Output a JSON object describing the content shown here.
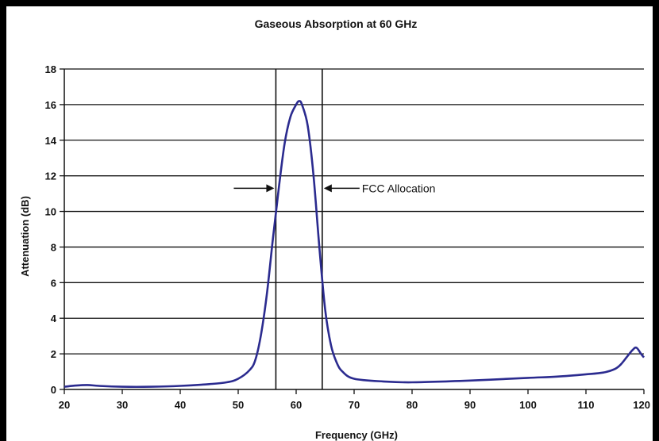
{
  "chart_data": {
    "type": "line",
    "title": "Gaseous Absorption at 60 GHz",
    "xlabel": "Frequency (GHz)",
    "ylabel": "Attenuation (dB)",
    "xlim": [
      20,
      120
    ],
    "ylim": [
      0,
      18
    ],
    "x_ticks": [
      20,
      30,
      40,
      50,
      60,
      70,
      80,
      90,
      100,
      110,
      120
    ],
    "y_ticks": [
      0,
      2,
      4,
      6,
      8,
      10,
      12,
      14,
      16,
      18
    ],
    "grid": "horizontal",
    "line_color": "#2b2b8f",
    "series": [
      {
        "x": [
          20,
          22,
          24,
          26,
          30,
          35,
          40,
          45,
          48,
          50,
          52,
          53,
          54,
          55,
          56,
          57,
          58,
          59,
          60,
          60.5,
          61,
          62,
          63,
          64,
          65,
          66,
          67,
          68,
          70,
          75,
          80,
          90,
          100,
          105,
          110,
          113,
          115,
          116,
          117,
          118,
          118.7,
          119.5,
          120
        ],
        "y": [
          0.15,
          0.22,
          0.25,
          0.2,
          0.15,
          0.15,
          0.2,
          0.3,
          0.4,
          0.6,
          1.1,
          1.7,
          3.2,
          5.5,
          8.5,
          11.3,
          13.8,
          15.3,
          16.0,
          16.2,
          16.0,
          14.8,
          12.0,
          8.0,
          4.5,
          2.5,
          1.5,
          1.0,
          0.6,
          0.45,
          0.4,
          0.5,
          0.65,
          0.72,
          0.85,
          0.95,
          1.15,
          1.4,
          1.8,
          2.2,
          2.35,
          2.0,
          1.8
        ]
      }
    ],
    "vertical_lines": [
      56.5,
      64.5
    ],
    "annotation": {
      "text": "FCC Allocation",
      "y": 11.3
    }
  }
}
